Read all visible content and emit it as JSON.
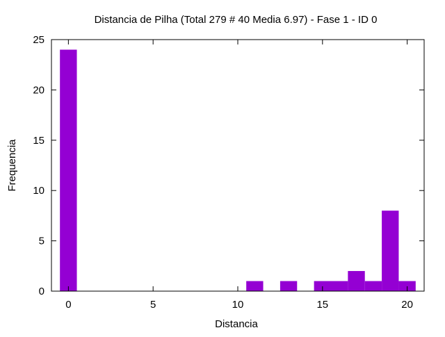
{
  "chart_data": {
    "type": "bar",
    "title": "Distancia de Pilha (Total 279 # 40 Media 6.97) - Fase  1 - ID 0",
    "xlabel": "Distancia",
    "ylabel": "Frequencia",
    "xlim": [
      -1,
      21
    ],
    "ylim": [
      0,
      25
    ],
    "bin_width": 1,
    "xticks": [
      0,
      5,
      10,
      15,
      20
    ],
    "yticks": [
      0,
      5,
      10,
      15,
      20,
      25
    ],
    "grid": false,
    "legend": "none",
    "bar_color": "#9400d3",
    "x": [
      0,
      11,
      13,
      15,
      16,
      17,
      18,
      19,
      20
    ],
    "values": [
      24,
      1,
      1,
      1,
      1,
      2,
      1,
      8,
      1
    ]
  }
}
